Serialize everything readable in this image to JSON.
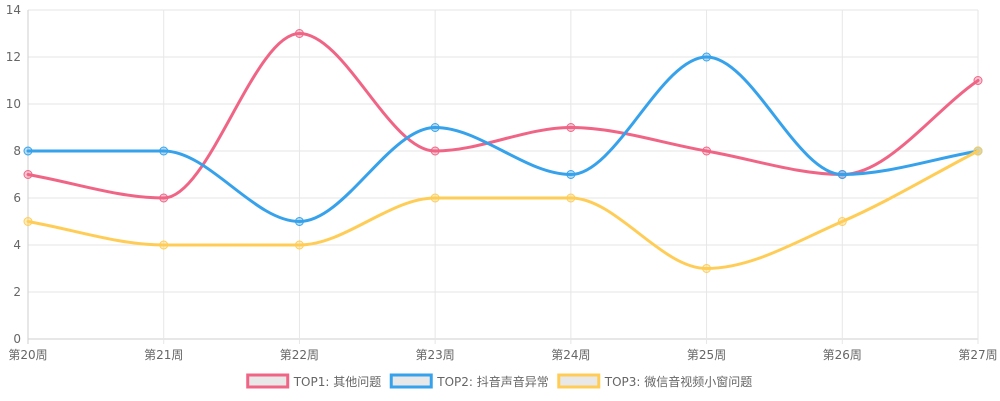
{
  "chart_data": {
    "type": "line",
    "title": "",
    "xlabel": "",
    "ylabel": "",
    "categories": [
      "第20周",
      "第21周",
      "第22周",
      "第23周",
      "第24周",
      "第25周",
      "第26周",
      "第27周"
    ],
    "ylim": [
      0,
      14
    ],
    "yticks": [
      0,
      2,
      4,
      6,
      8,
      10,
      12,
      14
    ],
    "grid": true,
    "legend_position": "bottom",
    "series": [
      {
        "name": "TOP1: 其他问题",
        "color": "#f06586",
        "values": [
          7,
          6,
          13,
          8,
          9,
          8,
          7,
          11
        ]
      },
      {
        "name": "TOP2: 抖音声音异常",
        "color": "#36a2eb",
        "values": [
          8,
          8,
          5,
          9,
          7,
          12,
          7,
          8
        ]
      },
      {
        "name": "TOP3: 微信音视频小窗问题",
        "color": "#ffcd56",
        "values": [
          5,
          4,
          4,
          6,
          6,
          3,
          5,
          8
        ]
      }
    ]
  }
}
